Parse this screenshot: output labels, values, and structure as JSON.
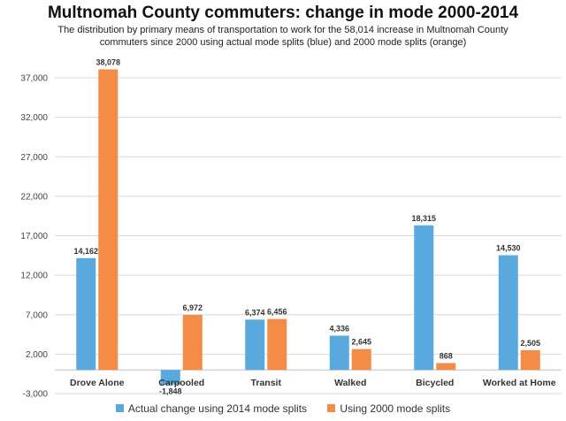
{
  "chart_data": {
    "type": "bar",
    "title": "Multnomah County commuters: change in mode 2000-2014",
    "subtitle": "The distribution by primary means of transportation to work for the 58,014 increase in Multnomah County commuters since 2000 using actual mode splits (blue) and 2000 mode splits (orange)",
    "categories": [
      "Drove Alone",
      "Carpooled",
      "Transit",
      "Walked",
      "Bicycled",
      "Worked at Home"
    ],
    "series": [
      {
        "name": "Actual change using 2014 mode splits",
        "values": [
          14162,
          -1848,
          6374,
          4336,
          18315,
          14530
        ],
        "labels": [
          "14,162",
          "-1,848",
          "6,374",
          "4,336",
          "18,315",
          "14,530"
        ],
        "color": "#5aa9de"
      },
      {
        "name": "Using 2000 mode splits",
        "values": [
          38078,
          6972,
          6456,
          2645,
          868,
          2505
        ],
        "labels": [
          "38,078",
          "6,972",
          "6,456",
          "2,645",
          "868",
          "2,505"
        ],
        "color": "#f28c47"
      }
    ],
    "yticks": [
      -3000,
      2000,
      7000,
      12000,
      17000,
      22000,
      27000,
      32000,
      37000
    ],
    "ytick_labels": [
      "-3,000",
      "2,000",
      "7,000",
      "12,000",
      "17,000",
      "22,000",
      "27,000",
      "32,000",
      "37,000"
    ],
    "ylim": [
      -3000,
      38500
    ],
    "grid": true,
    "legend_position": "bottom"
  }
}
